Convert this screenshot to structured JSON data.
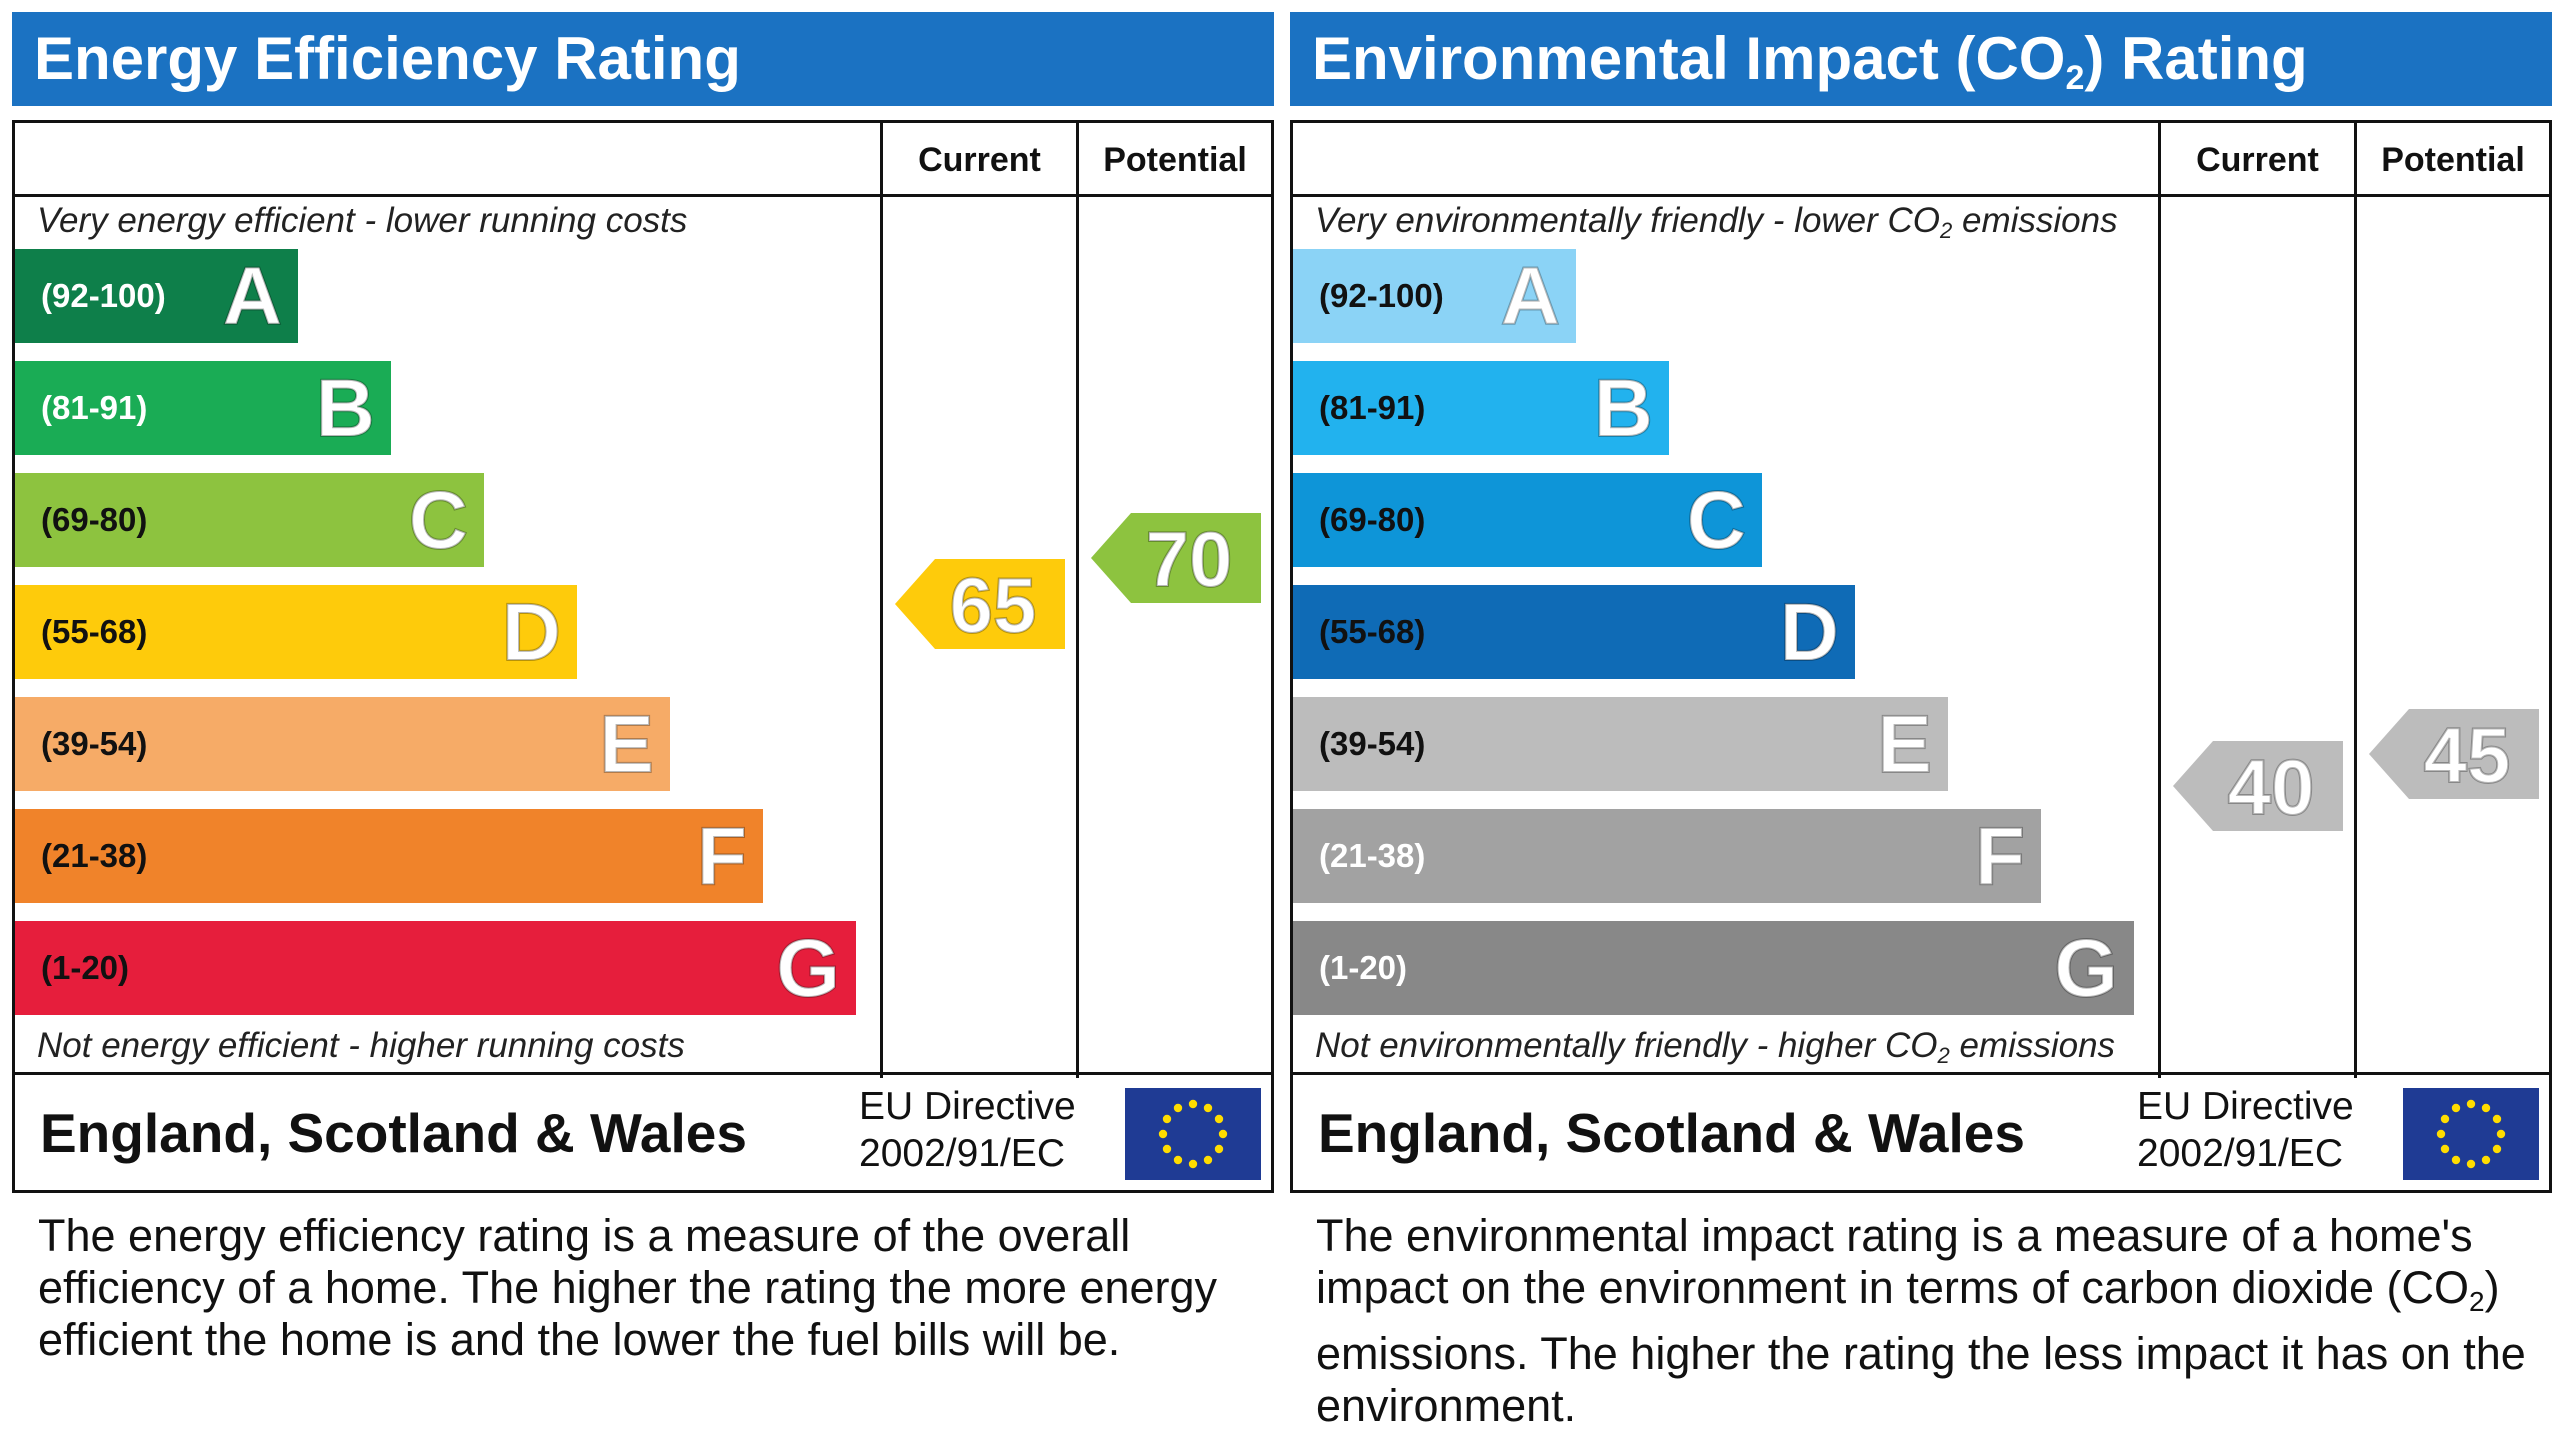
{
  "chart_data": [
    {
      "type": "bar",
      "title": "Energy Efficiency Rating",
      "columns": [
        "Current",
        "Potential"
      ],
      "top_note": "Very energy efficient - lower running costs",
      "bottom_note": "Not energy efficient - higher running costs",
      "categories": [
        "A",
        "B",
        "C",
        "D",
        "E",
        "F",
        "G"
      ],
      "ranges": [
        "(92-100)",
        "(81-91)",
        "(69-80)",
        "(55-68)",
        "(39-54)",
        "(21-38)",
        "(1-20)"
      ],
      "band_colors": [
        "#0e7f4a",
        "#1aac55",
        "#8dc33f",
        "#fecb0b",
        "#f6ab67",
        "#f0832a",
        "#e61e3c"
      ],
      "range_colors": [
        "#ffffff",
        "#ffffff",
        "#111111",
        "#111111",
        "#111111",
        "#111111",
        "#111111"
      ],
      "current": {
        "value": "65",
        "color": "#fecb0b"
      },
      "potential": {
        "value": "70",
        "color": "#8dc33f"
      },
      "region": "England, Scotland & Wales",
      "directive": [
        "EU Directive",
        "2002/91/EC"
      ],
      "description": "The energy efficiency rating is a measure of the overall efficiency of a home. The higher the rating the more energy efficient the home is and the lower the fuel bills will be."
    },
    {
      "type": "bar",
      "title": "Environmental Impact (CO2) Rating",
      "columns": [
        "Current",
        "Potential"
      ],
      "top_note": "Very environmentally friendly - lower CO2 emissions",
      "bottom_note": "Not environmentally friendly - higher CO2 emissions",
      "categories": [
        "A",
        "B",
        "C",
        "D",
        "E",
        "F",
        "G"
      ],
      "ranges": [
        "(92-100)",
        "(81-91)",
        "(69-80)",
        "(55-68)",
        "(39-54)",
        "(21-38)",
        "(1-20)"
      ],
      "band_colors": [
        "#8bd3f6",
        "#22b2ee",
        "#0e95d8",
        "#0f6bb6",
        "#bcbcbc",
        "#a2a2a2",
        "#888888"
      ],
      "range_colors": [
        "#111111",
        "#111111",
        "#111111",
        "#111111",
        "#111111",
        "#ffffff",
        "#ffffff"
      ],
      "current": {
        "value": "40",
        "color": "#bcbcbc"
      },
      "potential": {
        "value": "45",
        "color": "#bcbcbc"
      },
      "region": "England, Scotland & Wales",
      "directive": [
        "EU Directive",
        "2002/91/EC"
      ],
      "description": "The environmental impact rating is a measure of a home's impact on the environment in terms of carbon dioxide (CO2) emissions. The higher the rating the less impact it has on the environment."
    }
  ]
}
